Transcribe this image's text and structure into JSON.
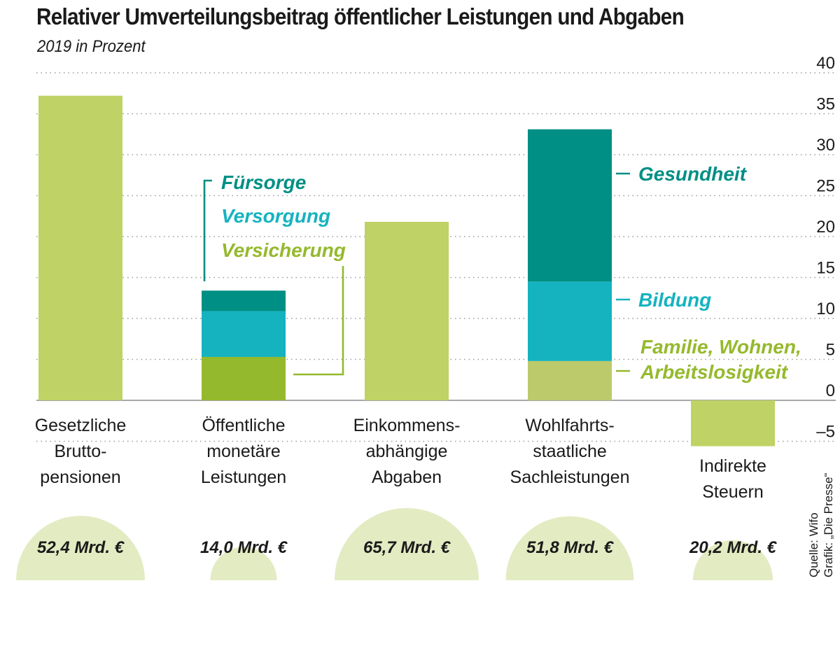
{
  "chart_data": {
    "type": "bar",
    "title": "Relativer Umverteilungsbeitrag öffentlicher Leistungen und Abgaben",
    "subtitle": "2019 in Prozent",
    "ylim": [
      -6,
      40
    ],
    "yticks": [
      40,
      35,
      30,
      25,
      20,
      15,
      10,
      5,
      0,
      -5
    ],
    "ytick_labels": [
      "40",
      "35",
      "30",
      "25",
      "20",
      "15",
      "10",
      "5",
      "0",
      "–5"
    ],
    "grid": true,
    "y_axis_position": "right",
    "categories": [
      "Gesetzliche Brutto- pensionen",
      "Öffentliche monetäre Leistungen",
      "Einkommens- abhängige Abgaben",
      "Wohlfahrts- staatliche Sachleistungen",
      "Indirekte Steuern"
    ],
    "category_lines": [
      [
        "Gesetzliche",
        "Brutto-",
        "pensionen"
      ],
      [
        "Öffentliche",
        "monetäre",
        "Leistungen"
      ],
      [
        "Einkommens-",
        "abhängige",
        "Abgaben"
      ],
      [
        "Wohlfahrts-",
        "staatliche",
        "Sachleistungen"
      ],
      [
        "Indirekte",
        "Steuern"
      ]
    ],
    "bars": [
      {
        "category": "Gesetzliche Brutto- pensionen",
        "segments": [
          {
            "value": 37.2,
            "color": "#bfd265"
          }
        ]
      },
      {
        "category": "Öffentliche monetäre Leistungen",
        "segments": [
          {
            "name": "Versicherung",
            "value": 5.3,
            "color": "#95b92c"
          },
          {
            "name": "Versorgung",
            "value": 5.6,
            "color": "#15b3c0"
          },
          {
            "name": "Fürsorge",
            "value": 2.5,
            "color": "#008f84"
          }
        ]
      },
      {
        "category": "Einkommens- abhängige Abgaben",
        "segments": [
          {
            "value": 21.8,
            "color": "#bfd265"
          }
        ]
      },
      {
        "category": "Wohlfahrts- staatliche Sachleistungen",
        "segments": [
          {
            "name": "Familie, Wohnen, Arbeitslosigkeit",
            "value": 4.8,
            "color": "#bdca6b"
          },
          {
            "name": "Bildung",
            "value": 9.7,
            "color": "#15b3c0"
          },
          {
            "name": "Gesundheit",
            "value": 18.6,
            "color": "#008f84"
          }
        ]
      },
      {
        "category": "Indirekte Steuern",
        "segments": [
          {
            "value": -5.6,
            "color": "#bfd265"
          }
        ]
      }
    ],
    "volumes": {
      "unit": "Mrd. €",
      "values": [
        52.4,
        14.0,
        65.7,
        51.8,
        20.2
      ],
      "labels": [
        "52,4 Mrd. €",
        "14,0 Mrd. €",
        "65,7 Mrd. €",
        "51,8 Mrd. €",
        "20,2 Mrd. €"
      ],
      "color": "#e3ebc2"
    },
    "annotations": [
      {
        "text": "Fürsorge",
        "color": "#008f84"
      },
      {
        "text": "Versorgung",
        "color": "#15b3c0"
      },
      {
        "text": "Versicherung",
        "color": "#95b92c"
      },
      {
        "text": "Gesundheit",
        "color": "#008f84"
      },
      {
        "text": "Bildung",
        "color": "#15b3c0"
      },
      {
        "text": "Familie, Wohnen,",
        "color": "#95b92c"
      },
      {
        "text": "Arbeitslosigkeit",
        "color": "#95b92c"
      }
    ]
  },
  "source": {
    "line1": "Quelle: Wifo",
    "line2": "Grafik: „Die Presse“"
  }
}
